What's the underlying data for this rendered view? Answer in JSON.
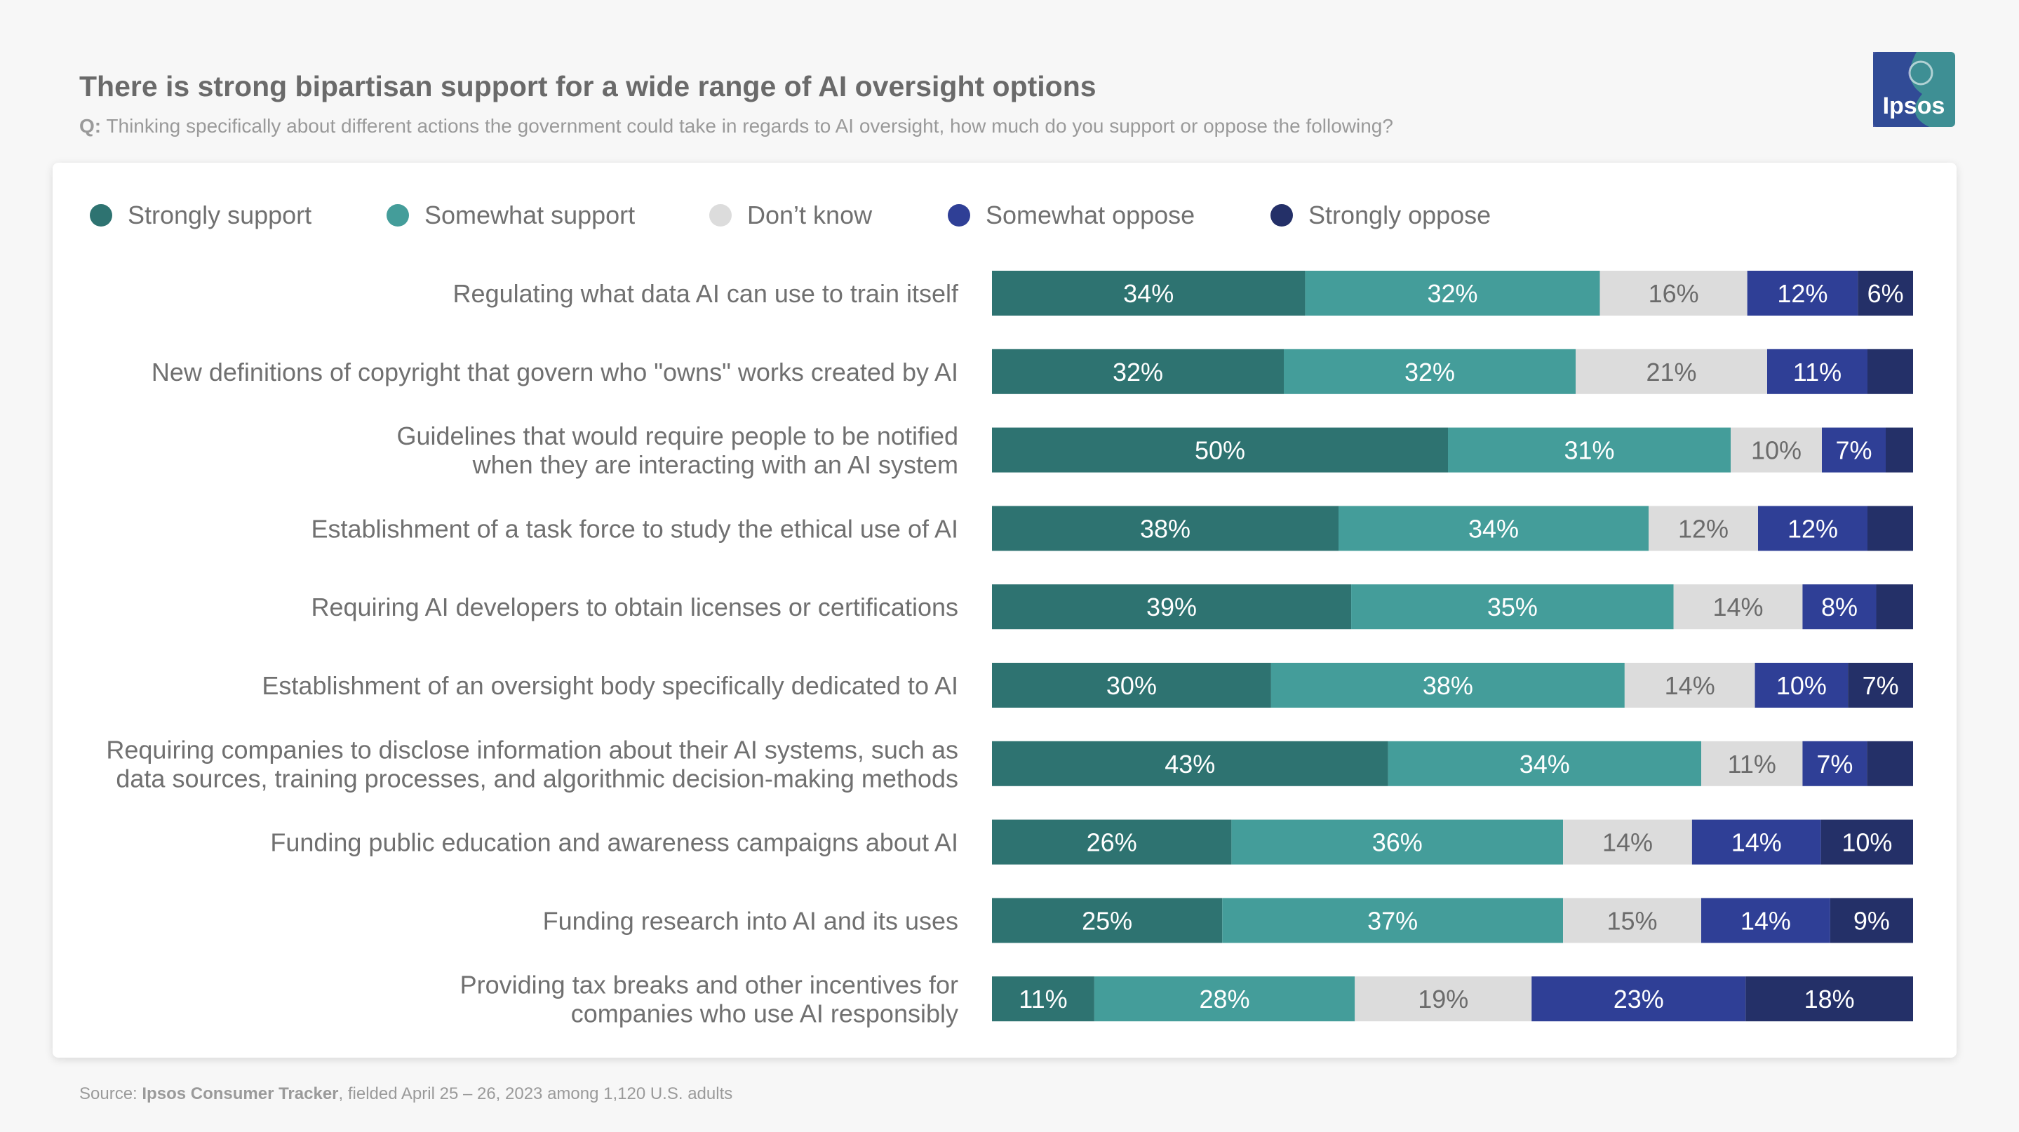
{
  "header": {
    "title": "There is strong bipartisan support for a wide range of AI oversight options",
    "question_label": "Q:",
    "question_text": "Thinking specifically about different actions the government could take in regards to AI oversight, how much do you support or oppose the following?",
    "logo_text": "Ipsos"
  },
  "colors": {
    "strongly_support": "#2e7371",
    "somewhat_support": "#449d9a",
    "dont_know": "#dcdcdc",
    "somewhat_oppose": "#2f3f96",
    "strongly_oppose": "#243068",
    "logo_bg": "#3e8f94"
  },
  "chart_data": {
    "type": "stacked-bar-horizontal",
    "title": "There is strong bipartisan support for a wide range of AI oversight options",
    "unit": "%",
    "xlim": [
      0,
      100
    ],
    "legend_position": "top",
    "series": [
      {
        "name": "Strongly support",
        "color": "#2e7371",
        "values": [
          34,
          32,
          50,
          38,
          39,
          30,
          43,
          26,
          25,
          11
        ]
      },
      {
        "name": "Somewhat support",
        "color": "#449d9a",
        "values": [
          32,
          32,
          31,
          34,
          35,
          38,
          34,
          36,
          37,
          28
        ]
      },
      {
        "name": "Don’t know",
        "color": "#dcdcdc",
        "values": [
          16,
          21,
          10,
          12,
          14,
          14,
          11,
          14,
          15,
          19
        ]
      },
      {
        "name": "Somewhat oppose",
        "color": "#2f3f96",
        "values": [
          12,
          11,
          7,
          12,
          8,
          10,
          7,
          14,
          14,
          23
        ]
      },
      {
        "name": "Strongly oppose",
        "color": "#243068",
        "values": [
          6,
          5,
          3,
          5,
          4,
          7,
          5,
          10,
          9,
          18
        ]
      }
    ],
    "label_threshold": 6,
    "categories": [
      [
        "Regulating what data AI can use to train itself"
      ],
      [
        "New definitions of copyright that govern who \"owns\" works created by AI"
      ],
      [
        "Guidelines that would require people to be notified",
        "when they are interacting with an AI system"
      ],
      [
        "Establishment of a task force to study the ethical use of AI"
      ],
      [
        "Requiring AI developers to obtain licenses or certifications"
      ],
      [
        "Establishment of an oversight body specifically dedicated to AI"
      ],
      [
        "Requiring companies to disclose information about their AI systems, such as",
        "data sources, training processes, and algorithmic decision-making methods"
      ],
      [
        "Funding public education and awareness campaigns about AI"
      ],
      [
        "Funding research into AI and its uses"
      ],
      [
        "Providing tax breaks and other incentives for",
        "companies who use AI responsibly"
      ]
    ]
  },
  "footer": {
    "source_label": "Source:",
    "source_name": "Ipsos Consumer Tracker",
    "source_rest": ", fielded April 25 – 26, 2023 among 1,120 U.S. adults"
  }
}
